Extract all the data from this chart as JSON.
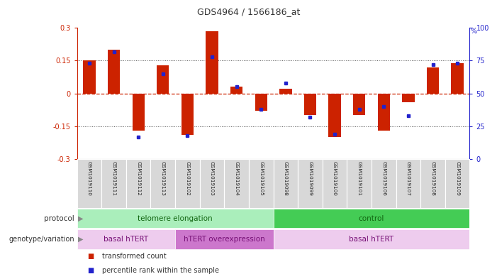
{
  "title": "GDS4964 / 1566186_at",
  "samples": [
    "GSM1019110",
    "GSM1019111",
    "GSM1019112",
    "GSM1019113",
    "GSM1019102",
    "GSM1019103",
    "GSM1019104",
    "GSM1019105",
    "GSM1019098",
    "GSM1019099",
    "GSM1019100",
    "GSM1019101",
    "GSM1019106",
    "GSM1019107",
    "GSM1019108",
    "GSM1019109"
  ],
  "bar_values": [
    0.15,
    0.2,
    -0.17,
    0.13,
    -0.19,
    0.285,
    0.03,
    -0.08,
    0.02,
    -0.1,
    -0.2,
    -0.1,
    -0.17,
    -0.04,
    0.12,
    0.14
  ],
  "percentile_values": [
    73,
    82,
    17,
    65,
    18,
    78,
    55,
    38,
    58,
    32,
    19,
    38,
    40,
    33,
    72,
    73
  ],
  "ylim": [
    -0.3,
    0.3
  ],
  "yticks_left": [
    -0.3,
    -0.15,
    0.0,
    0.15,
    0.3
  ],
  "ytick_labels_left": [
    "-0.3",
    "-0.15",
    "0",
    "0.15",
    "0.3"
  ],
  "right_yticks": [
    0,
    25,
    50,
    75,
    100
  ],
  "bar_color": "#cc2200",
  "dot_color": "#2222cc",
  "protocol_groups": [
    {
      "label": "telomere elongation",
      "start": 0,
      "end": 7,
      "color": "#aaeebb"
    },
    {
      "label": "control",
      "start": 8,
      "end": 15,
      "color": "#44cc55"
    }
  ],
  "genotype_groups": [
    {
      "label": "basal hTERT",
      "start": 0,
      "end": 3,
      "color": "#eeccee"
    },
    {
      "label": "hTERT overexpression",
      "start": 4,
      "end": 7,
      "color": "#cc77cc"
    },
    {
      "label": "basal hTERT",
      "start": 8,
      "end": 15,
      "color": "#eeccee"
    }
  ],
  "legend_items": [
    {
      "color": "#cc2200",
      "label": "transformed count"
    },
    {
      "color": "#2222cc",
      "label": "percentile rank within the sample"
    }
  ],
  "hline_color": "#cc2200",
  "dotted_color": "#555555",
  "bg_color": "#ffffff",
  "title_color": "#333333",
  "left_ax_color": "#cc2200",
  "right_ax_color": "#2222cc"
}
